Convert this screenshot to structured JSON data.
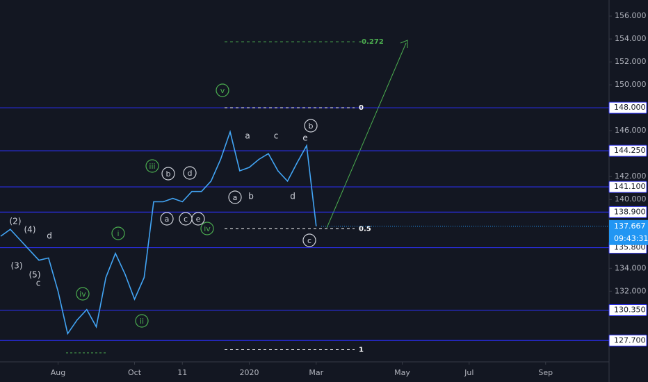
{
  "chart_data": {
    "type": "line",
    "categories": [
      null,
      null,
      null,
      null,
      null,
      null,
      "Aug",
      null,
      null,
      null,
      null,
      null,
      null,
      null,
      "Oct",
      null,
      null,
      null,
      null,
      "11",
      null,
      null,
      null,
      null,
      null,
      null,
      "2020",
      null,
      null,
      null,
      null,
      null,
      null,
      "Mar",
      null,
      null,
      null,
      null,
      null,
      null,
      null,
      null,
      "May",
      null,
      null,
      null,
      null,
      null,
      null,
      "Jul",
      null,
      null,
      null,
      null,
      null,
      null,
      null,
      "Sep",
      null,
      null,
      null,
      null
    ],
    "series": [
      {
        "color": "#42a5f5",
        "values": [
          136.8,
          137.4,
          136.5,
          135.6,
          134.7,
          134.9,
          132.0,
          128.3,
          129.5,
          130.4,
          128.9,
          133.2,
          135.3,
          133.5,
          131.3,
          133.2,
          139.8,
          139.8,
          140.1,
          139.8,
          140.7,
          140.7,
          141.6,
          143.5,
          145.9,
          142.5,
          142.8,
          143.5,
          144.0,
          142.5,
          141.6,
          143.2,
          144.7,
          137.667,
          null,
          null,
          null,
          null,
          null,
          null,
          null,
          null,
          null,
          null,
          null,
          null,
          null,
          null,
          null,
          null,
          null,
          null,
          null,
          null,
          null,
          null,
          null,
          null,
          null,
          null,
          null,
          null
        ]
      }
    ],
    "ylim": [
      125.9,
      157.4
    ],
    "yticks": [
      {
        "value": 156,
        "label": "156.000"
      },
      {
        "value": 154,
        "label": "154.000"
      },
      {
        "value": 152,
        "label": "152.000"
      },
      {
        "value": 150,
        "label": "150.000"
      },
      {
        "value": 146,
        "label": "146.000"
      },
      {
        "value": 142,
        "label": "142.000"
      },
      {
        "value": 140,
        "label": "140.000"
      },
      {
        "value": 134,
        "label": "134.000"
      },
      {
        "value": 132,
        "label": "132.000"
      }
    ],
    "level_lines": [
      {
        "value": 148,
        "label": "148.000"
      },
      {
        "value": 144.25,
        "label": "144.250"
      },
      {
        "value": 141.1,
        "label": "141.100"
      },
      {
        "value": 138.9,
        "label": "138.900"
      },
      {
        "value": 135.8,
        "label": "135.800"
      },
      {
        "value": 130.35,
        "label": "130.350"
      },
      {
        "value": 127.7,
        "label": "127.700"
      }
    ],
    "current_price": {
      "value": 137.667,
      "label": "137.667"
    },
    "countdown": "09:43:31",
    "fib_levels": [
      {
        "value": 153.76,
        "label": "-0.272"
      },
      {
        "value": 148,
        "label": "0"
      },
      {
        "value": 137.45,
        "label": "0.5"
      },
      {
        "value": 126.9,
        "label": "1"
      }
    ],
    "wave_labels": [
      "(2)",
      "(4)",
      "d",
      "(3)",
      "(5)",
      "c",
      "i",
      "iv",
      "ii",
      "iii",
      "v",
      "iv",
      "b",
      "d",
      "a",
      "c",
      "e",
      "a",
      "c",
      "e",
      "b",
      "a",
      "b",
      "d",
      "c"
    ]
  }
}
